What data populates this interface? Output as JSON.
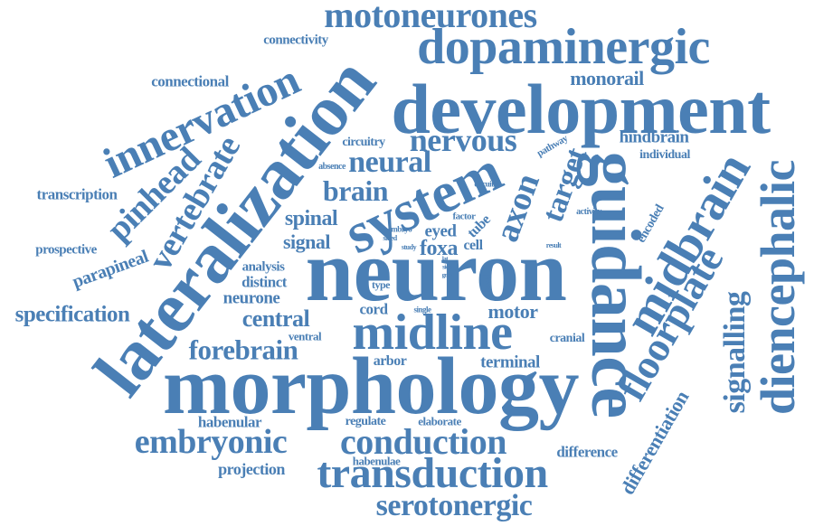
{
  "style": {
    "word_color": "#4A7FB5",
    "background": "#FFFFFF"
  },
  "words": {
    "motoneurones": "motoneurones",
    "connectivity": "connectivity",
    "dopaminergic": "dopaminergic",
    "connectional": "connectional",
    "monorail": "monorail",
    "development": "development",
    "innervation": "innervation",
    "lateralization": "lateralization",
    "nervous": "nervous",
    "hindbrain": "hindbrain",
    "circuitry": "circuitry",
    "pathway": "pathway",
    "individual": "individual",
    "neural": "neural",
    "absence": "absence",
    "vertebrate": "vertebrate",
    "pinhead": "pinhead",
    "transcription": "transcription",
    "brain": "brain",
    "system": "system",
    "target": "target",
    "axon": "axon",
    "guidance": "guidance",
    "midbrain": "midbrain",
    "diencephalic": "diencephalic",
    "circuit": "circuit",
    "activity": "activity",
    "encoded": "encoded",
    "spinal": "spinal",
    "factor": "factor",
    "eyed": "eyed",
    "tube": "tube",
    "signal": "signal",
    "embryo": "embryo",
    "sided": "sided",
    "study": "study",
    "foxa": "foxa",
    "cell": "cell",
    "result": "result",
    "prospective": "prospective",
    "parapineal": "parapineal",
    "neuron": "neuron",
    "floorplate": "floorplate",
    "signalling": "signalling",
    "analysis": "analysis",
    "distinct": "distinct",
    "lat": "lat",
    "side": "side",
    "gros": "gros",
    "level": "level",
    "neurone": "neurone",
    "type": "type",
    "specification": "specification",
    "central": "central",
    "cord": "cord",
    "single": "single",
    "motor": "motor",
    "midline": "midline",
    "forebrain": "forebrain",
    "ventral": "ventral",
    "cranial": "cranial",
    "arbor": "arbor",
    "terminal": "terminal",
    "differentiation": "differentiation",
    "morphology": "morphology",
    "habenular": "habenular",
    "regulate": "regulate",
    "elaborate": "elaborate",
    "embryonic": "embryonic",
    "conduction": "conduction",
    "difference": "difference",
    "habenulae": "habenulae",
    "projection": "projection",
    "transduction": "transduction",
    "serotonergic": "serotonergic"
  }
}
